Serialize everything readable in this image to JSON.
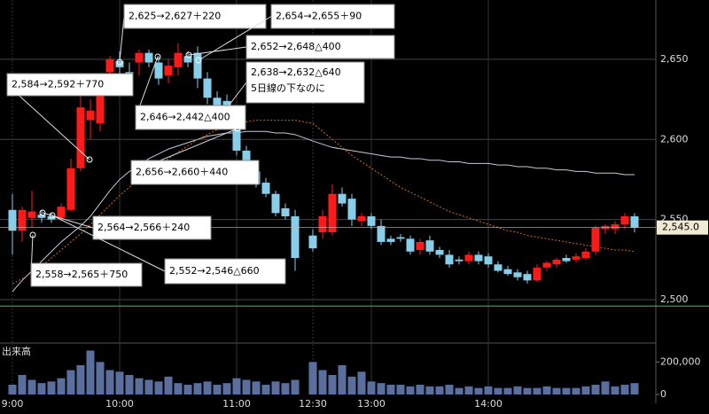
{
  "chart_data": {
    "type": "candlestick",
    "categories": [
      "9:00",
      null,
      null,
      null,
      null,
      null,
      null,
      null,
      null,
      null,
      null,
      "10:00",
      null,
      null,
      null,
      null,
      null,
      null,
      null,
      null,
      null,
      null,
      null,
      "11:00",
      null,
      null,
      null,
      null,
      null,
      null,
      "12:30",
      null,
      null,
      null,
      null,
      null,
      "13:00",
      null,
      null,
      null,
      null,
      null,
      null,
      null,
      null,
      null,
      null,
      null,
      "14:00",
      null,
      null,
      null,
      null,
      null,
      null,
      null,
      null,
      null,
      null,
      null,
      null,
      null,
      null,
      null
    ],
    "open": [
      2556,
      2543,
      2551,
      2553,
      2552,
      2551,
      2556,
      2582,
      2612,
      2610,
      2642,
      2649,
      2642,
      2648,
      2654,
      2648,
      2640,
      2645,
      2652,
      2654,
      2638,
      2626,
      2624,
      2609,
      2593,
      2580,
      2573,
      2566,
      2557,
      2552,
      2540,
      2542,
      2542,
      2566,
      2563,
      2549,
      2552,
      2546,
      2538,
      2539,
      2538,
      2531,
      2537,
      2531,
      2528,
      2525,
      2524,
      2528,
      2527,
      2522,
      2519,
      2517,
      2516,
      2512,
      2520,
      2522,
      2526,
      2525,
      2526,
      2530,
      2544,
      2544,
      2547,
      2552
    ],
    "high": [
      2566,
      2558,
      2568,
      2556,
      2554,
      2560,
      2588,
      2630,
      2625,
      2640,
      2652,
      2655,
      2648,
      2656,
      2656,
      2652,
      2650,
      2660,
      2655,
      2658,
      2642,
      2630,
      2628,
      2612,
      2596,
      2584,
      2576,
      2568,
      2560,
      2556,
      2544,
      2556,
      2572,
      2570,
      2566,
      2554,
      2554,
      2550,
      2540,
      2541,
      2540,
      2538,
      2540,
      2533,
      2531,
      2527,
      2530,
      2530,
      2529,
      2524,
      2521,
      2519,
      2518,
      2522,
      2524,
      2526,
      2528,
      2529,
      2532,
      2546,
      2547,
      2549,
      2554,
      2554
    ],
    "low": [
      2528,
      2536,
      2545,
      2548,
      2548,
      2549,
      2555,
      2580,
      2600,
      2605,
      2630,
      2640,
      2632,
      2640,
      2645,
      2634,
      2635,
      2640,
      2645,
      2632,
      2622,
      2618,
      2610,
      2590,
      2578,
      2570,
      2564,
      2552,
      2550,
      2518,
      2530,
      2538,
      2540,
      2558,
      2546,
      2546,
      2544,
      2534,
      2534,
      2536,
      2528,
      2528,
      2528,
      2526,
      2520,
      2522,
      2522,
      2522,
      2520,
      2517,
      2515,
      2512,
      2510,
      2511,
      2518,
      2520,
      2523,
      2523,
      2525,
      2528,
      2541,
      2541,
      2544,
      2542
    ],
    "close": [
      2543,
      2556,
      2555,
      2551,
      2550,
      2558,
      2582,
      2620,
      2618,
      2632,
      2650,
      2645,
      2637,
      2654,
      2648,
      2638,
      2646,
      2654,
      2648,
      2638,
      2626,
      2620,
      2615,
      2593,
      2580,
      2572,
      2566,
      2554,
      2552,
      2526,
      2532,
      2552,
      2566,
      2560,
      2550,
      2552,
      2546,
      2536,
      2536,
      2538,
      2530,
      2536,
      2530,
      2528,
      2522,
      2524,
      2528,
      2524,
      2522,
      2518,
      2516,
      2514,
      2512,
      2520,
      2523,
      2525,
      2524,
      2527,
      2530,
      2545,
      2546,
      2547,
      2552,
      2545
    ],
    "up_color": "#ff1a1a",
    "down_color": "#87ceeb",
    "lines": [
      {
        "color": "#c8c8d8",
        "values": [
          2505,
          2512,
          2518,
          2524,
          2530,
          2536,
          2541,
          2546,
          2552,
          2560,
          2568,
          2575,
          2580,
          2584,
          2588,
          2591,
          2594,
          2596,
          2598,
          2600,
          2602,
          2603,
          2604,
          2604,
          2605,
          2605,
          2605,
          2604,
          2604,
          2603,
          2599,
          2597,
          2595,
          2594,
          2593,
          2592,
          2591,
          2590,
          2589,
          2589,
          2588,
          2588,
          2587,
          2587,
          2586,
          2586,
          2585,
          2585,
          2585,
          2584,
          2584,
          2583,
          2583,
          2582,
          2582,
          2581,
          2581,
          2580,
          2580,
          2579,
          2579,
          2579,
          2578,
          2578
        ]
      },
      {
        "color": "#d2691e",
        "values": [
          2510,
          2513,
          2517,
          2521,
          2526,
          2531,
          2536,
          2541,
          2547,
          2553,
          2559,
          2565,
          2570,
          2575,
          2580,
          2584,
          2588,
          2592,
          2596,
          2600,
          2603,
          2606,
          2608,
          2610,
          2611,
          2612,
          2612,
          2612,
          2612,
          2612,
          2610,
          2605,
          2600,
          2595,
          2590,
          2586,
          2582,
          2578,
          2574,
          2570,
          2567,
          2564,
          2561,
          2558,
          2555,
          2553,
          2551,
          2549,
          2547,
          2545,
          2543,
          2542,
          2540,
          2539,
          2538,
          2537,
          2536,
          2535,
          2534,
          2533,
          2532,
          2531,
          2531,
          2530
        ]
      }
    ],
    "ylim": [
      2474,
      2687
    ],
    "yticks": [
      {
        "value": 2500,
        "label": "2,500"
      },
      {
        "value": 2550,
        "label": "2,550"
      },
      {
        "value": 2600,
        "label": "2,600"
      },
      {
        "value": 2650,
        "label": "2,650"
      }
    ],
    "last_price": {
      "value": 2545,
      "label": "2,545.0"
    },
    "reference_line": 2496,
    "volume": {
      "label": "出来高",
      "color": "#5b6f9e",
      "values": [
        60000,
        120000,
        90000,
        70000,
        80000,
        100000,
        150000,
        180000,
        270000,
        200000,
        150000,
        140000,
        120000,
        100000,
        90000,
        80000,
        110000,
        70000,
        60000,
        70000,
        80000,
        60000,
        70000,
        100000,
        90000,
        80000,
        60000,
        80000,
        70000,
        90000,
        200000,
        150000,
        120000,
        180000,
        110000,
        140000,
        80000,
        70000,
        60000,
        60000,
        50000,
        60000,
        50000,
        50000,
        60000,
        40000,
        50000,
        40000,
        50000,
        40000,
        40000,
        50000,
        40000,
        40000,
        50000,
        40000,
        40000,
        40000,
        50000,
        60000,
        80000,
        50000,
        60000,
        70000
      ],
      "ylim": [
        0,
        300000
      ],
      "yticks": [
        0,
        {
          "value": 200000,
          "label": "200,000"
        }
      ]
    },
    "annotations": [
      {
        "text": "2,625→2,627＋220"
      },
      {
        "text": "2,654→2,655＋90"
      },
      {
        "text": "2,652→2,648△400"
      },
      {
        "text": "2,638→2,632△640",
        "note": "5日線の下なのに"
      },
      {
        "text": "2,584→2,592＋770"
      },
      {
        "text": "2,646→2,442△400"
      },
      {
        "text": "2,656→2,660＋440"
      },
      {
        "text": "2,564→2,566＋240"
      },
      {
        "text": "2,552→2,546△660"
      },
      {
        "text": "2,558→2,565＋750"
      }
    ]
  }
}
